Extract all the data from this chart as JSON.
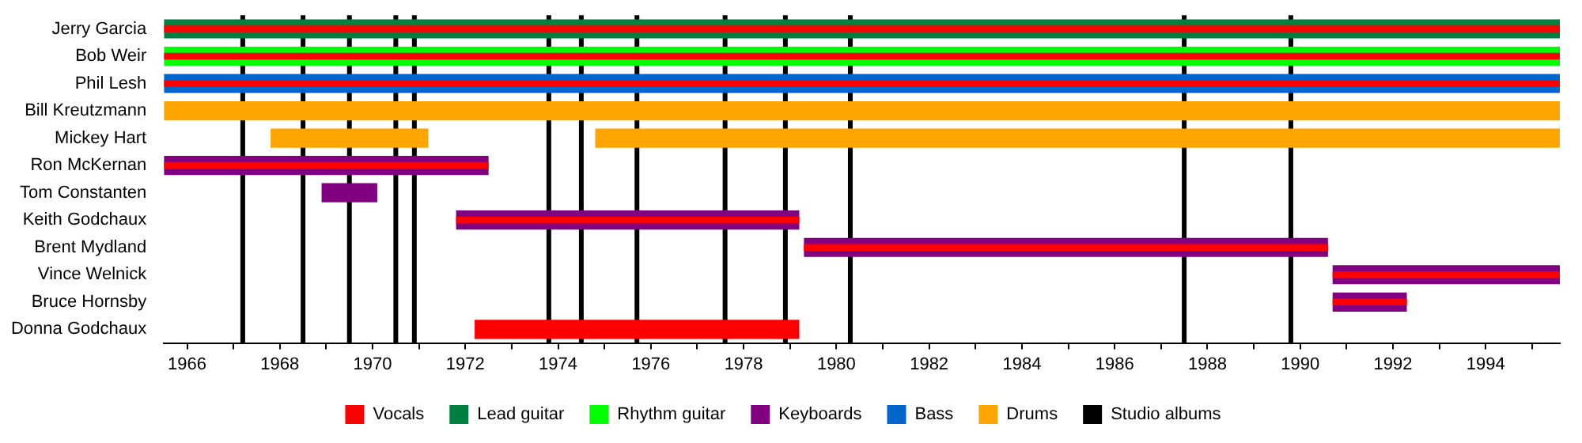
{
  "chart_data": {
    "type": "bar",
    "orientation": "horizontal",
    "categories": [
      "Jerry Garcia",
      "Bob Weir",
      "Phil Lesh",
      "Bill Kreutzmann",
      "Mickey Hart",
      "Ron McKernan",
      "Tom Constanten",
      "Keith Godchaux",
      "Brent Mydland",
      "Vince Welnick",
      "Bruce Hornsby",
      "Donna Godchaux"
    ],
    "series": [
      {
        "name": "Vocals",
        "color": "#ff0000",
        "base": [
          1965.5,
          1965.5,
          1965.5,
          null,
          null,
          1965.5,
          null,
          1971.8,
          1979.3,
          1990.7,
          1990.7,
          1972.2
        ],
        "values": [
          30.1,
          30.1,
          30.1,
          null,
          null,
          7.0,
          null,
          7.4,
          11.3,
          4.9,
          1.6,
          7.0
        ]
      },
      {
        "name": "Lead guitar",
        "color": "#008040",
        "base": [
          1965.5,
          null,
          null,
          null,
          null,
          null,
          null,
          null,
          null,
          null,
          null,
          null
        ],
        "values": [
          30.1,
          null,
          null,
          null,
          null,
          null,
          null,
          null,
          null,
          null,
          null,
          null
        ]
      },
      {
        "name": "Rhythm guitar",
        "color": "#00ff00",
        "base": [
          null,
          1965.5,
          null,
          null,
          null,
          null,
          null,
          null,
          null,
          null,
          null,
          null
        ],
        "values": [
          null,
          30.1,
          null,
          null,
          null,
          null,
          null,
          null,
          null,
          null,
          null,
          null
        ]
      },
      {
        "name": "Keyboards",
        "color": "#800080",
        "base": [
          null,
          null,
          null,
          null,
          null,
          1965.5,
          1968.9,
          1971.8,
          1979.3,
          1990.7,
          1990.7,
          null
        ],
        "values": [
          null,
          null,
          null,
          null,
          null,
          7.0,
          1.2,
          7.4,
          11.3,
          4.9,
          1.6,
          null
        ]
      },
      {
        "name": "Bass",
        "color": "#0066cc",
        "base": [
          null,
          null,
          1965.5,
          null,
          null,
          null,
          null,
          null,
          null,
          null,
          null,
          null
        ],
        "values": [
          null,
          null,
          30.1,
          null,
          null,
          null,
          null,
          null,
          null,
          null,
          null,
          null
        ]
      },
      {
        "name": "Drums",
        "color": "#ffa500",
        "base": [
          null,
          null,
          null,
          1965.5,
          1967.8,
          null,
          null,
          null,
          null,
          null,
          null,
          null
        ],
        "values": [
          null,
          null,
          null,
          30.1,
          3.4,
          null,
          null,
          null,
          null,
          null,
          null,
          null
        ]
      },
      {
        "color": "#ffa500",
        "base": [
          null,
          null,
          null,
          null,
          1974.8,
          null,
          null,
          null,
          null,
          null,
          null,
          null
        ],
        "values": [
          null,
          null,
          null,
          null,
          20.8,
          null,
          null,
          null,
          null,
          null,
          null,
          null
        ]
      }
    ],
    "xlim": [
      1965.5,
      1995.6
    ],
    "xticks": [
      1966,
      {
        "value": 1967,
        "label": null
      },
      1968,
      {
        "value": 1969,
        "label": null
      },
      1970,
      {
        "value": 1971,
        "label": null
      },
      1972,
      {
        "value": 1973,
        "label": null
      },
      1974,
      {
        "value": 1975,
        "label": null
      },
      1976,
      {
        "value": 1977,
        "label": null
      },
      1978,
      {
        "value": 1979,
        "label": null
      },
      1980,
      {
        "value": 1981,
        "label": null
      },
      1982,
      {
        "value": 1983,
        "label": null
      },
      1984,
      {
        "value": 1985,
        "label": null
      },
      1986,
      {
        "value": 1987,
        "label": null
      },
      1988,
      {
        "value": 1989,
        "label": null
      },
      1990,
      {
        "value": 1991,
        "label": null
      },
      1992,
      {
        "value": 1993,
        "label": null
      },
      1994,
      {
        "value": 1995,
        "label": null
      }
    ],
    "ref_lines": [
      {
        "axis": "x",
        "value": 1967.2,
        "label": "Studio albums",
        "color": "#000000"
      },
      {
        "axis": "x",
        "value": 1968.5,
        "color": "#000000"
      },
      {
        "axis": "x",
        "value": 1969.5,
        "color": "#000000"
      },
      {
        "axis": "x",
        "value": 1970.5,
        "color": "#000000"
      },
      {
        "axis": "x",
        "value": 1970.9,
        "color": "#000000"
      },
      {
        "axis": "x",
        "value": 1973.8,
        "color": "#000000"
      },
      {
        "axis": "x",
        "value": 1974.5,
        "color": "#000000"
      },
      {
        "axis": "x",
        "value": 1975.7,
        "color": "#000000"
      },
      {
        "axis": "x",
        "value": 1977.6,
        "color": "#000000"
      },
      {
        "axis": "x",
        "value": 1978.9,
        "color": "#000000"
      },
      {
        "axis": "x",
        "value": 1980.3,
        "color": "#000000"
      },
      {
        "axis": "x",
        "value": 1987.5,
        "color": "#000000"
      },
      {
        "axis": "x",
        "value": 1989.8,
        "color": "#000000"
      }
    ],
    "grid": false,
    "legend": "bottom"
  }
}
